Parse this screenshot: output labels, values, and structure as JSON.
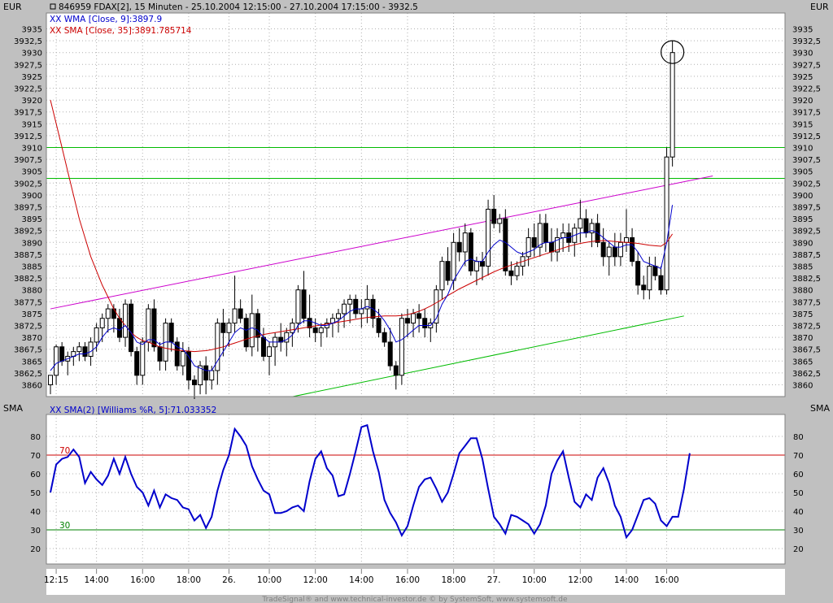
{
  "header": {
    "currency_left": "EUR",
    "currency_right": "EUR",
    "title": "846959 FDAX[2], 15 Minuten - 25.10.2004 12:15:00 - 27.10.2004 17:15:00 - 3932.5",
    "legend_wma": "WMA [Close, 9]:3897.9",
    "legend_sma": "SMA [Close, 35]:3891.785714",
    "osc_label_left": "SMA",
    "osc_label_right": "SMA",
    "osc_legend": "SMA(2) [Williams %R, 5]:71.033352",
    "level_70": "70",
    "level_30": "30",
    "footer": "TradeSignal® and www.technical-investor.de © by SystemSoft, www.systemsoft.de"
  },
  "colors": {
    "candle_up": "#ffffff",
    "candle_down": "#000000",
    "wma": "#0000cc",
    "sma": "#cc0000",
    "channel_upper": "#cc00cc",
    "channel_lower": "#00bb00",
    "horizontal_lines": "#00bb00",
    "oscillator": "#0000cc",
    "level_70": "#cc0000",
    "level_30": "#008000"
  },
  "chart_data": [
    {
      "type": "candlestick",
      "ylim": [
        3857.5,
        3937.5
      ],
      "y_ticks": [
        "3935",
        "3932,5",
        "3930",
        "3927,5",
        "3925",
        "3922,5",
        "3920",
        "3917,5",
        "3915",
        "3912,5",
        "3910",
        "3907,5",
        "3905",
        "3902,5",
        "3900",
        "3897,5",
        "3895",
        "3892,5",
        "3890",
        "3887,5",
        "3885",
        "3882,5",
        "3880",
        "3877,5",
        "3875",
        "3872,5",
        "3870",
        "3867,5",
        "3865",
        "3862,5",
        "3860"
      ],
      "x_ticks": [
        "12:15",
        "14:00",
        "16:00",
        "18:00",
        "26.",
        "10:00",
        "12:00",
        "14:00",
        "16:00",
        "18:00",
        "27.",
        "10:00",
        "12:00",
        "14:00",
        "16:00"
      ],
      "x_tick_bars": [
        1,
        8,
        16,
        24,
        31,
        38,
        46,
        54,
        62,
        70,
        77,
        84,
        92,
        100,
        107
      ],
      "ohlc": [
        [
          3860,
          3862,
          3858,
          3862
        ],
        [
          3862,
          3868.5,
          3860,
          3868
        ],
        [
          3868,
          3869,
          3864,
          3865
        ],
        [
          3865,
          3867,
          3862,
          3866
        ],
        [
          3866,
          3868,
          3864,
          3867
        ],
        [
          3867,
          3869,
          3865,
          3868
        ],
        [
          3868,
          3869,
          3865,
          3866
        ],
        [
          3866,
          3870,
          3864,
          3869
        ],
        [
          3869,
          3873,
          3867,
          3872
        ],
        [
          3872,
          3875,
          3869,
          3874
        ],
        [
          3874,
          3877,
          3871,
          3876
        ],
        [
          3876,
          3877,
          3871,
          3874
        ],
        [
          3874,
          3876,
          3869,
          3870
        ],
        [
          3870,
          3878,
          3868,
          3877
        ],
        [
          3877,
          3878,
          3866,
          3867
        ],
        [
          3867,
          3868,
          3860,
          3862
        ],
        [
          3862,
          3870,
          3860,
          3869
        ],
        [
          3869,
          3877,
          3867,
          3876
        ],
        [
          3876,
          3878,
          3867,
          3868
        ],
        [
          3868,
          3869,
          3863,
          3865
        ],
        [
          3865,
          3874,
          3863,
          3873
        ],
        [
          3873,
          3874,
          3867,
          3869
        ],
        [
          3869,
          3870,
          3863,
          3864
        ],
        [
          3864,
          3869,
          3862,
          3867
        ],
        [
          3867,
          3868,
          3859,
          3861
        ],
        [
          3861,
          3862,
          3857,
          3860
        ],
        [
          3860,
          3865,
          3858,
          3864
        ],
        [
          3864,
          3866,
          3858,
          3861
        ],
        [
          3861,
          3864,
          3859,
          3863
        ],
        [
          3863,
          3874,
          3860,
          3873
        ],
        [
          3873,
          3876,
          3866,
          3871
        ],
        [
          3871,
          3874,
          3868,
          3873
        ],
        [
          3873,
          3883,
          3871,
          3876
        ],
        [
          3876,
          3878,
          3873,
          3874
        ],
        [
          3874,
          3875,
          3867,
          3868
        ],
        [
          3868,
          3879,
          3866,
          3875
        ],
        [
          3875,
          3876,
          3867,
          3870
        ],
        [
          3870,
          3872,
          3865,
          3866
        ],
        [
          3866,
          3869,
          3862,
          3868
        ],
        [
          3868,
          3871,
          3864,
          3870
        ],
        [
          3870,
          3873,
          3867,
          3869
        ],
        [
          3869,
          3872,
          3866,
          3871
        ],
        [
          3871,
          3874,
          3868,
          3873
        ],
        [
          3873,
          3881,
          3871,
          3880
        ],
        [
          3880,
          3884,
          3873,
          3874
        ],
        [
          3874,
          3879,
          3870,
          3872
        ],
        [
          3872,
          3874,
          3869,
          3871
        ],
        [
          3871,
          3873,
          3868,
          3872
        ],
        [
          3872,
          3874,
          3870,
          3873
        ],
        [
          3873,
          3875,
          3870,
          3874
        ],
        [
          3874,
          3876,
          3871,
          3875
        ],
        [
          3875,
          3878,
          3872,
          3877
        ],
        [
          3877,
          3879,
          3873,
          3878
        ],
        [
          3878,
          3879,
          3874,
          3875
        ],
        [
          3875,
          3878,
          3872,
          3876
        ],
        [
          3876,
          3881,
          3873,
          3878
        ],
        [
          3878,
          3879,
          3872,
          3874
        ],
        [
          3874,
          3876,
          3870,
          3871
        ],
        [
          3871,
          3872,
          3868,
          3869
        ],
        [
          3869,
          3872,
          3863,
          3864
        ],
        [
          3864,
          3865,
          3859,
          3862
        ],
        [
          3862,
          3875,
          3860,
          3874
        ],
        [
          3874,
          3876,
          3870,
          3873
        ],
        [
          3873,
          3876,
          3870,
          3875
        ],
        [
          3875,
          3877,
          3871,
          3874
        ],
        [
          3874,
          3876,
          3870,
          3872
        ],
        [
          3872,
          3874,
          3869,
          3873
        ],
        [
          3873,
          3881,
          3871,
          3880
        ],
        [
          3880,
          3887,
          3878,
          3886
        ],
        [
          3886,
          3889,
          3881,
          3882
        ],
        [
          3882,
          3892,
          3880,
          3890
        ],
        [
          3890,
          3893,
          3886,
          3888
        ],
        [
          3888,
          3894,
          3885,
          3892
        ],
        [
          3892,
          3893,
          3883,
          3884
        ],
        [
          3884,
          3887,
          3881,
          3886
        ],
        [
          3886,
          3888,
          3882,
          3885
        ],
        [
          3885,
          3899,
          3883,
          3897
        ],
        [
          3897,
          3900,
          3893,
          3894
        ],
        [
          3894,
          3896,
          3892,
          3895
        ],
        [
          3895,
          3897,
          3883,
          3884
        ],
        [
          3884,
          3886,
          3881,
          3883
        ],
        [
          3883,
          3886,
          3882,
          3885
        ],
        [
          3885,
          3888,
          3883,
          3887
        ],
        [
          3887,
          3893,
          3885,
          3891
        ],
        [
          3891,
          3894,
          3887,
          3889
        ],
        [
          3889,
          3896,
          3887,
          3894
        ],
        [
          3894,
          3896,
          3888,
          3890
        ],
        [
          3890,
          3893,
          3886,
          3888
        ],
        [
          3888,
          3893,
          3886,
          3891
        ],
        [
          3891,
          3894,
          3888,
          3892
        ],
        [
          3892,
          3894,
          3888,
          3890
        ],
        [
          3890,
          3894,
          3887,
          3893
        ],
        [
          3893,
          3899,
          3890,
          3895
        ],
        [
          3895,
          3897,
          3891,
          3892
        ],
        [
          3892,
          3895,
          3889,
          3894
        ],
        [
          3894,
          3896,
          3889,
          3890
        ],
        [
          3890,
          3893,
          3885,
          3887
        ],
        [
          3887,
          3890,
          3883,
          3889
        ],
        [
          3889,
          3892,
          3885,
          3887
        ],
        [
          3887,
          3892,
          3885,
          3890
        ],
        [
          3890,
          3897,
          3888,
          3891
        ],
        [
          3891,
          3893,
          3885,
          3886
        ],
        [
          3886,
          3888,
          3879,
          3881
        ],
        [
          3881,
          3883,
          3878,
          3880
        ],
        [
          3880,
          3887,
          3878,
          3885
        ],
        [
          3885,
          3887,
          3882,
          3883
        ],
        [
          3883,
          3885,
          3879,
          3880
        ],
        [
          3880,
          3910,
          3879,
          3908
        ],
        [
          3908,
          3932.5,
          3906,
          3930
        ]
      ],
      "wma": [
        3863,
        3864.5,
        3865,
        3865.5,
        3866,
        3866.5,
        3866.5,
        3867,
        3868,
        3870,
        3871.5,
        3872,
        3871.5,
        3872.5,
        3871,
        3869,
        3868.5,
        3869.5,
        3869.5,
        3868.5,
        3869,
        3869,
        3868,
        3867.5,
        3866,
        3864,
        3863.5,
        3863,
        3863,
        3865,
        3867,
        3869,
        3871,
        3872,
        3871.5,
        3872,
        3871.5,
        3870,
        3869,
        3869,
        3869,
        3869.5,
        3870.5,
        3872.5,
        3873.5,
        3873.5,
        3873,
        3872.5,
        3872.5,
        3873,
        3873.5,
        3874.5,
        3875.5,
        3876,
        3876,
        3876.5,
        3876,
        3875,
        3873.5,
        3871.5,
        3869,
        3869.5,
        3870.5,
        3871.5,
        3872.5,
        3872.5,
        3872.5,
        3874,
        3877,
        3879,
        3882,
        3884,
        3886,
        3886.5,
        3886,
        3886,
        3888,
        3889.5,
        3890.5,
        3890,
        3889,
        3888,
        3887.5,
        3888,
        3888.5,
        3889.5,
        3890,
        3890,
        3890.5,
        3891,
        3891,
        3891.5,
        3892,
        3892,
        3892.5,
        3892,
        3891,
        3890,
        3889,
        3889,
        3889.5,
        3889.5,
        3888,
        3886,
        3885.5,
        3885,
        3884.5,
        3890,
        3897.9
      ],
      "sma": [
        3920,
        3915,
        3910,
        3905,
        3900,
        3895,
        3891,
        3887,
        3884,
        3881,
        3878.5,
        3876,
        3874,
        3872.5,
        3871,
        3870,
        3869.3,
        3869,
        3868.5,
        3868,
        3867.7,
        3867.5,
        3867.3,
        3867.2,
        3867.1,
        3867,
        3867.1,
        3867.2,
        3867.4,
        3867.7,
        3868,
        3868.4,
        3868.8,
        3869.2,
        3869.6,
        3870,
        3870.3,
        3870.6,
        3870.8,
        3871,
        3871.2,
        3871.4,
        3871.6,
        3871.8,
        3872,
        3872.2,
        3872.4,
        3872.6,
        3872.8,
        3873,
        3873.2,
        3873.4,
        3873.6,
        3873.8,
        3874,
        3874.2,
        3874.3,
        3874.4,
        3874.5,
        3874.5,
        3874.5,
        3874.6,
        3874.8,
        3875.1,
        3875.5,
        3876,
        3876.6,
        3877.3,
        3878,
        3878.8,
        3879.5,
        3880.2,
        3880.8,
        3881.4,
        3882,
        3882.6,
        3883.2,
        3883.8,
        3884.3,
        3884.8,
        3885.2,
        3885.6,
        3886,
        3886.4,
        3886.8,
        3887.2,
        3887.6,
        3888,
        3888.4,
        3888.8,
        3889.2,
        3889.5,
        3889.8,
        3890,
        3890.2,
        3890.3,
        3890.4,
        3890.3,
        3890.2,
        3890.1,
        3890,
        3889.9,
        3889.8,
        3889.6,
        3889.4,
        3889.3,
        3889.2,
        3890,
        3891.785714
      ],
      "hlines": [
        3910,
        3903.5
      ],
      "channel_upper": {
        "from": [
          0,
          3876
        ],
        "to": [
          115,
          3904
        ]
      },
      "channel_lower": {
        "from": [
          42,
          3857.5
        ],
        "to": [
          110,
          3874.5
        ]
      }
    },
    {
      "type": "line",
      "name": "SMA(2) [Williams %R, 5]",
      "ylim": [
        14,
        90
      ],
      "y_ticks": [
        80,
        70,
        60,
        50,
        40,
        30,
        20
      ],
      "levels": [
        70,
        30
      ],
      "values": [
        50,
        65,
        68,
        69,
        73,
        69,
        55,
        61,
        57,
        54,
        59,
        68,
        60,
        69,
        60,
        53,
        50,
        43,
        51,
        42,
        49,
        47,
        46,
        42,
        41,
        35,
        38,
        31,
        37,
        51,
        62,
        70,
        84,
        80,
        75,
        64,
        57,
        51,
        49,
        39,
        39,
        40,
        42,
        43,
        40,
        56,
        68,
        72,
        63,
        59,
        48,
        49,
        60,
        72,
        85,
        86,
        72,
        61,
        46,
        39,
        34,
        27,
        32,
        43,
        53,
        57,
        58,
        52,
        45,
        50,
        60,
        71,
        75,
        79,
        79,
        68,
        52,
        37,
        33,
        28,
        38,
        37,
        35,
        33,
        28,
        33,
        43,
        60,
        67,
        72,
        58,
        45,
        42,
        49,
        46,
        58,
        63,
        55,
        43,
        37,
        26,
        30,
        38,
        46,
        47,
        44,
        35,
        32,
        37,
        37,
        52,
        71
      ]
    }
  ]
}
